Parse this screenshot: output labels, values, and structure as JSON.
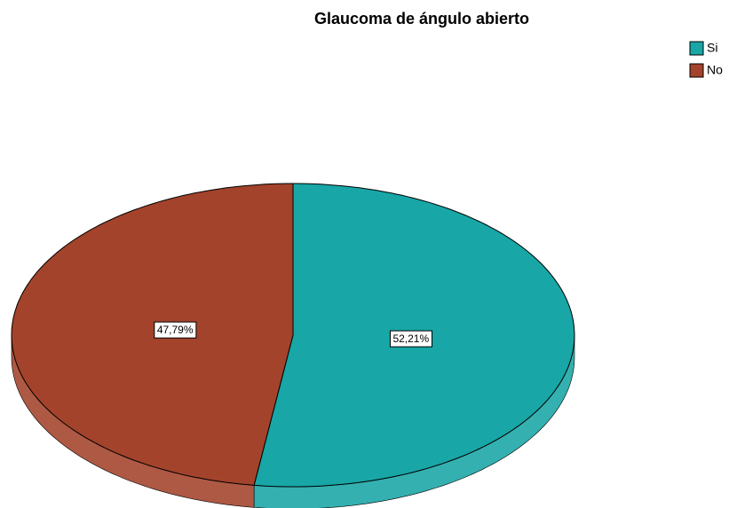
{
  "chart_data": {
    "type": "pie",
    "title": "Glaucoma de ángulo abierto",
    "categories": [
      "Si",
      "No"
    ],
    "values": [
      52.21,
      47.79
    ],
    "value_labels": [
      "52,21%",
      "47,79%"
    ],
    "colors": [
      "#18a6a6",
      "#a3432b"
    ],
    "legend": "top-right"
  }
}
